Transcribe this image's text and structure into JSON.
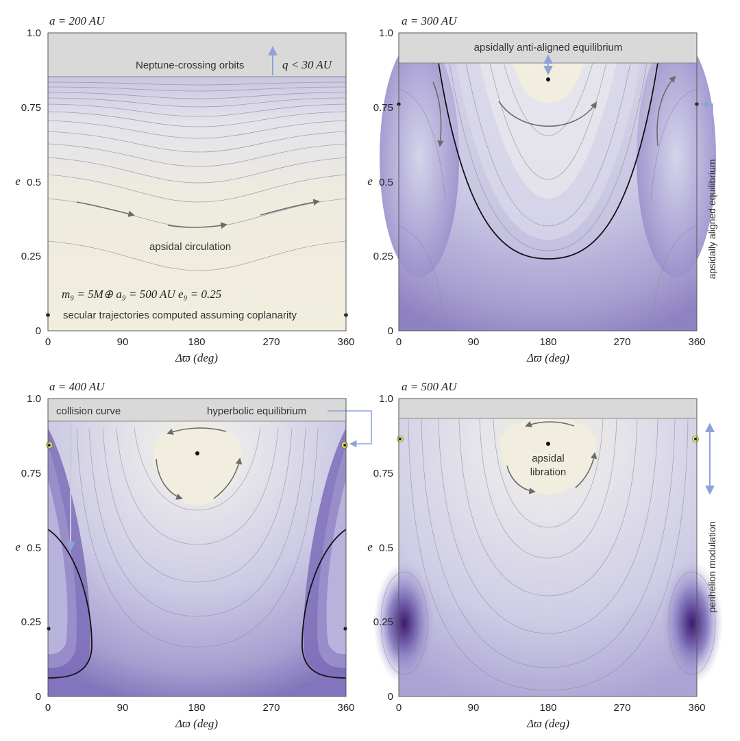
{
  "colors": {
    "band": "#d9d9d9",
    "pale": "#f1eedf",
    "purple": "#5a2d91",
    "lavender": "#c4c5e2",
    "arrow_blue": "#8ea3d6",
    "line_gray": "#6b6b6b",
    "hyperbolic_ring": "#e2df74"
  },
  "chart_data": [
    {
      "type": "contour",
      "title": "a = 200 AU",
      "xlabel": "Δϖ (deg)",
      "ylabel": "e",
      "xlim": [
        0,
        360
      ],
      "ylim": [
        0,
        1.0
      ],
      "xticks": [
        "0",
        "90",
        "180",
        "270",
        "360"
      ],
      "yticks": [
        "0",
        "0.25",
        "0.5",
        "0.75",
        "1.0"
      ],
      "crossing_e": 0.85,
      "annotations": [
        "Neptune-crossing orbits",
        "q < 30 AU",
        "apsidal circulation",
        "m₉ = 5M⊕   a₉ = 500 AU   e₉ = 0.25",
        "secular trajectories computed assuming coplanarity"
      ]
    },
    {
      "type": "contour",
      "title": "a = 300 AU",
      "xlabel": "Δϖ (deg)",
      "ylabel": "e",
      "xlim": [
        0,
        360
      ],
      "ylim": [
        0,
        1.0
      ],
      "xticks": [
        "0",
        "90",
        "180",
        "270",
        "360"
      ],
      "yticks": [
        "0",
        "0.25",
        "0.5",
        "0.75",
        "1.0"
      ],
      "crossing_e": 0.9,
      "equilibria": [
        {
          "dw": 180,
          "e": 0.845
        },
        {
          "dw": 0,
          "e": 0.76
        },
        {
          "dw": 360,
          "e": 0.76
        }
      ],
      "annotations": [
        "apsidally anti-aligned equilibrium",
        "apsidally aligned equilibrium"
      ]
    },
    {
      "type": "contour",
      "title": "a = 400 AU",
      "xlabel": "Δϖ (deg)",
      "ylabel": "e",
      "xlim": [
        0,
        360
      ],
      "ylim": [
        0,
        1.0
      ],
      "xticks": [
        "0",
        "90",
        "180",
        "270",
        "360"
      ],
      "yticks": [
        "0",
        "0.25",
        "0.5",
        "0.75",
        "1.0"
      ],
      "crossing_e": 0.925,
      "equilibria": [
        {
          "dw": 180,
          "e": 0.815
        },
        {
          "dw": 0,
          "e": 0.845
        },
        {
          "dw": 360,
          "e": 0.845
        },
        {
          "dw": 0,
          "e": 0.225
        },
        {
          "dw": 360,
          "e": 0.225
        }
      ],
      "annotations": [
        "collision curve",
        "hyperbolic equilibrium"
      ]
    },
    {
      "type": "contour",
      "title": "a = 500 AU",
      "xlabel": "Δϖ (deg)",
      "ylabel": "e",
      "xlim": [
        0,
        360
      ],
      "ylim": [
        0,
        1.0
      ],
      "xticks": [
        "0",
        "90",
        "180",
        "270",
        "360"
      ],
      "yticks": [
        "0",
        "0.25",
        "0.5",
        "0.75",
        "1.0"
      ],
      "crossing_e": 0.935,
      "equilibria": [
        {
          "dw": 180,
          "e": 0.85
        },
        {
          "dw": 0,
          "e": 0.865
        },
        {
          "dw": 360,
          "e": 0.865
        }
      ],
      "annotations": [
        "apsidal libration",
        "perihelion modulation"
      ]
    }
  ]
}
